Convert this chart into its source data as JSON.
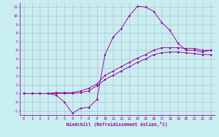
{
  "xlabel": "Windchill (Refroidissement éolien,°C)",
  "bg_color": "#c8eef0",
  "line_color": "#990099",
  "grid_color": "#b0b0cc",
  "xlim": [
    -0.5,
    23.5
  ],
  "ylim": [
    -1.5,
    11.5
  ],
  "xticks": [
    0,
    1,
    2,
    3,
    4,
    5,
    6,
    7,
    8,
    9,
    10,
    11,
    12,
    13,
    14,
    15,
    16,
    17,
    18,
    19,
    20,
    21,
    22,
    23
  ],
  "yticks": [
    -1,
    0,
    1,
    2,
    3,
    4,
    5,
    6,
    7,
    8,
    9,
    10,
    11
  ],
  "line1_x": [
    0,
    1,
    2,
    3,
    4,
    5,
    6,
    7,
    8,
    9,
    10,
    11,
    12,
    13,
    14,
    15,
    16,
    17,
    18,
    19,
    20,
    21,
    22,
    23
  ],
  "line1_y": [
    1.0,
    1.0,
    1.0,
    1.0,
    0.8,
    0.0,
    -1.3,
    -0.7,
    -0.6,
    0.3,
    5.5,
    7.5,
    8.5,
    10.0,
    11.1,
    11.0,
    10.5,
    9.2,
    8.3,
    6.8,
    6.0,
    6.0,
    5.8,
    6.0
  ],
  "line2_x": [
    0,
    1,
    2,
    3,
    4,
    5,
    6,
    7,
    8,
    9,
    10,
    11,
    12,
    13,
    14,
    15,
    16,
    17,
    18,
    19,
    20,
    21,
    22,
    23
  ],
  "line2_y": [
    1.0,
    1.0,
    1.0,
    1.0,
    1.1,
    1.1,
    1.1,
    1.3,
    1.6,
    2.1,
    3.1,
    3.6,
    4.1,
    4.6,
    5.1,
    5.5,
    6.0,
    6.3,
    6.3,
    6.3,
    6.2,
    6.2,
    6.0,
    6.0
  ],
  "line3_x": [
    0,
    1,
    2,
    3,
    4,
    5,
    6,
    7,
    8,
    9,
    10,
    11,
    12,
    13,
    14,
    15,
    16,
    17,
    18,
    19,
    20,
    21,
    22,
    23
  ],
  "line3_y": [
    1.0,
    1.0,
    1.0,
    1.0,
    1.0,
    1.0,
    1.0,
    1.1,
    1.3,
    1.9,
    2.6,
    3.1,
    3.6,
    4.1,
    4.6,
    5.0,
    5.5,
    5.7,
    5.8,
    5.8,
    5.7,
    5.6,
    5.5,
    5.5
  ]
}
